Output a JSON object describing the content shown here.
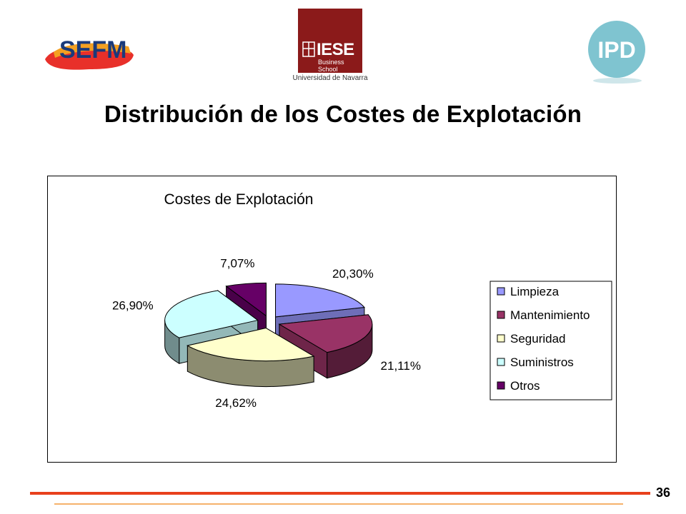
{
  "header": {
    "logos": [
      {
        "name": "sefm-logo",
        "text": "SEFM",
        "colors": [
          "#e8302a",
          "#f4a021",
          "#1a3a7a"
        ]
      },
      {
        "name": "iese-logo",
        "text": "IESE",
        "subtext": "Business School",
        "caption": "Universidad de Navarra",
        "color": "#8b1a1a"
      },
      {
        "name": "ipd-logo",
        "text": "IPD",
        "color": "#7fc4d0"
      }
    ]
  },
  "page_title": "Distribución de los Costes de Explotación",
  "chart_data": {
    "type": "pie",
    "title": "Costes de Explotación",
    "legend_position": "right",
    "three_d": true,
    "slices": [
      {
        "label": "Limpieza",
        "value": 20.3,
        "display": "20,30%",
        "color": "#9999ff"
      },
      {
        "label": "Mantenimiento",
        "value": 21.11,
        "display": "21,11%",
        "color": "#993366"
      },
      {
        "label": "Seguridad",
        "value": 24.62,
        "display": "24,62%",
        "color": "#ffffcc"
      },
      {
        "label": "Suministros",
        "value": 26.9,
        "display": "26,90%",
        "color": "#ccffff"
      },
      {
        "label": "Otros",
        "value": 7.07,
        "display": "7,07%",
        "color": "#660066"
      }
    ]
  },
  "footer": {
    "page_number": "36",
    "line_colors": [
      "#e8401c",
      "#f6b26b"
    ]
  }
}
